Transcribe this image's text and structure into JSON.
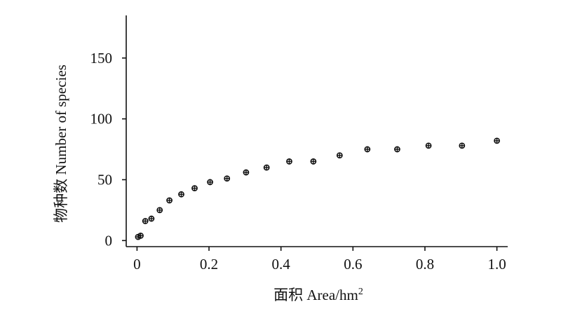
{
  "chart_data": {
    "type": "scatter",
    "xlabel": "面积 Area/hm",
    "xlabel_superscript": "2",
    "ylabel": "物种数 Number of species",
    "xlim": [
      -0.03,
      1.03
    ],
    "ylim": [
      -5,
      185
    ],
    "x_ticks": [
      0,
      0.2,
      0.4,
      0.6,
      0.8,
      1.0
    ],
    "x_tick_labels": [
      "0",
      "0.2",
      "0.4",
      "0.6",
      "0.8",
      "1.0"
    ],
    "y_ticks": [
      0,
      50,
      100,
      150
    ],
    "y_tick_labels": [
      "0",
      "50",
      "100",
      "150"
    ],
    "grid": false,
    "legend": "none",
    "series": [
      {
        "marker": "circle-plus",
        "color": "#111111",
        "points": [
          {
            "x": 0.003,
            "y": 3
          },
          {
            "x": 0.01,
            "y": 4
          },
          {
            "x": 0.023,
            "y": 16
          },
          {
            "x": 0.04,
            "y": 18
          },
          {
            "x": 0.063,
            "y": 25
          },
          {
            "x": 0.09,
            "y": 33
          },
          {
            "x": 0.123,
            "y": 38
          },
          {
            "x": 0.16,
            "y": 43
          },
          {
            "x": 0.203,
            "y": 48
          },
          {
            "x": 0.25,
            "y": 51
          },
          {
            "x": 0.303,
            "y": 56
          },
          {
            "x": 0.36,
            "y": 60
          },
          {
            "x": 0.423,
            "y": 65
          },
          {
            "x": 0.49,
            "y": 65
          },
          {
            "x": 0.563,
            "y": 70
          },
          {
            "x": 0.64,
            "y": 75
          },
          {
            "x": 0.723,
            "y": 75
          },
          {
            "x": 0.81,
            "y": 78
          },
          {
            "x": 0.903,
            "y": 78
          },
          {
            "x": 1.0,
            "y": 82
          }
        ]
      }
    ]
  }
}
